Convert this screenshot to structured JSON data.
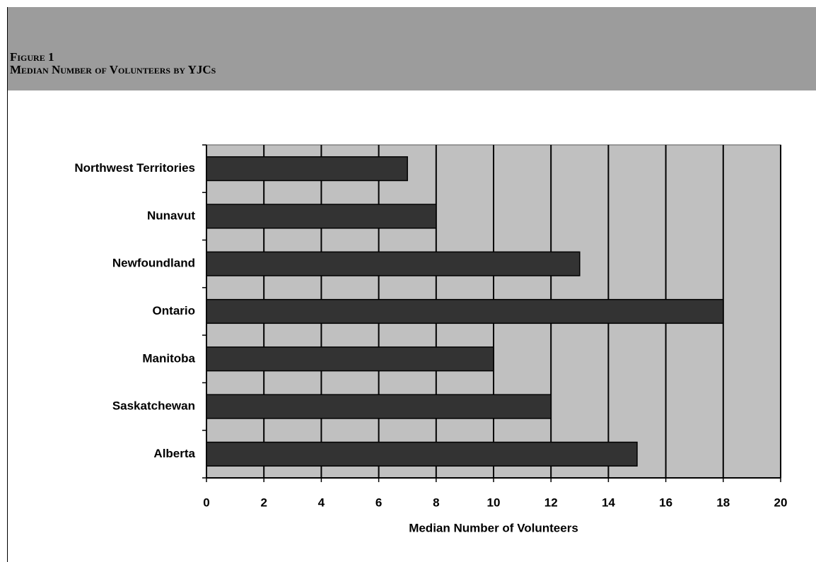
{
  "chart_data": {
    "type": "barh",
    "title": "Figure 1",
    "subtitle": "Median Number of Volunteers by YJCs",
    "categories": [
      "Northwest Territories",
      "Nunavut",
      "Newfoundland",
      "Ontario",
      "Manitoba",
      "Saskatchewan",
      "Alberta"
    ],
    "values": [
      7,
      8,
      13,
      18,
      10,
      12,
      15
    ],
    "color": "#333333",
    "xlabel": "Median Number of Volunteers",
    "xlim": [
      0,
      20
    ],
    "xticks": [
      0,
      2,
      4,
      6,
      8,
      10,
      12,
      14,
      16,
      18,
      20
    ],
    "grid": true
  }
}
